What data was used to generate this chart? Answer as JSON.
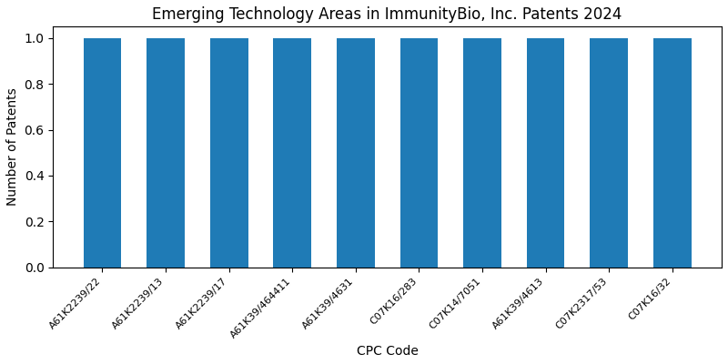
{
  "title": "Emerging Technology Areas in ImmunityBio, Inc. Patents 2024",
  "xlabel": "CPC Code",
  "ylabel": "Number of Patents",
  "categories": [
    "A61K2239/22",
    "A61K2239/13",
    "A61K2239/17",
    "A61K39/464411",
    "A61K39/4631",
    "C07K16/283",
    "C07K14/7051",
    "A61K39/4613",
    "C07K2317/53",
    "C07K16/32"
  ],
  "values": [
    1,
    1,
    1,
    1,
    1,
    1,
    1,
    1,
    1,
    1
  ],
  "bar_color": "#1f7bb6",
  "ylim": [
    0,
    1.05
  ],
  "yticks": [
    0.0,
    0.2,
    0.4,
    0.6,
    0.8,
    1.0
  ],
  "figsize": [
    8.0,
    4.0
  ],
  "dpi": 100,
  "title_fontsize": 12,
  "axis_label_fontsize": 10,
  "tick_fontsize": 8,
  "bar_width": 0.6
}
